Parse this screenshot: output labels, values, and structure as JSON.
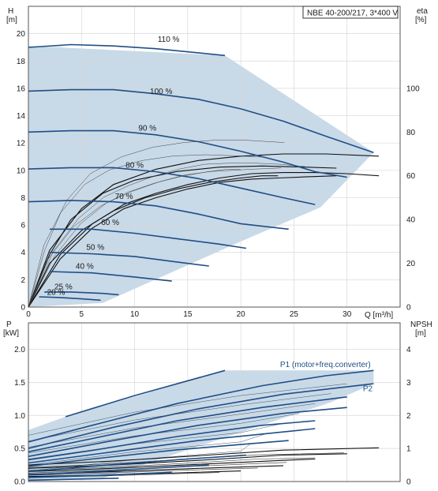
{
  "title": "NBE 40-200/217, 3*400 V",
  "chart_data": [
    {
      "type": "line",
      "name": "head",
      "xlabel": "Q [m³/h]",
      "ylabel_left": [
        "H",
        "[m]"
      ],
      "ylabel_right": [
        "eta",
        "[%]"
      ],
      "xlim": [
        0,
        35
      ],
      "ylim": [
        0,
        22
      ],
      "eta_lim": [
        0,
        137.5
      ],
      "xticks": [
        0,
        5,
        10,
        15,
        20,
        25,
        30
      ],
      "yticks": [
        0,
        2,
        4,
        6,
        8,
        10,
        12,
        14,
        16,
        18,
        20
      ],
      "eta_ticks": [
        0,
        20,
        40,
        60,
        80,
        100
      ],
      "grid": true,
      "operating_envelope": [
        [
          0,
          19.1
        ],
        [
          18.5,
          18.4
        ],
        [
          32.5,
          11.3
        ],
        [
          27.5,
          7.3
        ],
        [
          20,
          4.8
        ],
        [
          7,
          0.3
        ],
        [
          0,
          0
        ]
      ],
      "series": [
        {
          "name": "110 %",
          "label_at": [
            13.2,
            19.4
          ],
          "points": [
            [
              0,
              19.0
            ],
            [
              4,
              19.2
            ],
            [
              8,
              19.1
            ],
            [
              12,
              18.9
            ],
            [
              16,
              18.6
            ],
            [
              18.5,
              18.4
            ]
          ]
        },
        {
          "name": "100 %",
          "label_at": [
            12.5,
            15.6
          ],
          "points": [
            [
              0,
              15.8
            ],
            [
              4,
              15.9
            ],
            [
              8,
              15.9
            ],
            [
              12,
              15.6
            ],
            [
              16,
              15.2
            ],
            [
              20,
              14.5
            ],
            [
              24,
              13.6
            ],
            [
              28,
              12.5
            ],
            [
              32.5,
              11.3
            ]
          ]
        },
        {
          "name": "90 %",
          "label_at": [
            11.2,
            12.9
          ],
          "points": [
            [
              0,
              12.8
            ],
            [
              4,
              12.9
            ],
            [
              8,
              12.9
            ],
            [
              12,
              12.6
            ],
            [
              16,
              12.1
            ],
            [
              20,
              11.4
            ],
            [
              24,
              10.6
            ],
            [
              27,
              9.9
            ],
            [
              30,
              9.5
            ]
          ]
        },
        {
          "name": "80 %",
          "label_at": [
            10.0,
            10.2
          ],
          "points": [
            [
              0,
              10.1
            ],
            [
              4,
              10.2
            ],
            [
              8,
              10.2
            ],
            [
              12,
              9.9
            ],
            [
              16,
              9.4
            ],
            [
              20,
              8.7
            ],
            [
              24,
              8.0
            ],
            [
              27,
              7.5
            ]
          ]
        },
        {
          "name": "70 %",
          "label_at": [
            9.0,
            7.9
          ],
          "points": [
            [
              0,
              7.7
            ],
            [
              4,
              7.8
            ],
            [
              8,
              7.7
            ],
            [
              12,
              7.4
            ],
            [
              16,
              6.8
            ],
            [
              20,
              6.1
            ],
            [
              24.5,
              5.7
            ]
          ]
        },
        {
          "name": "60 %",
          "label_at": [
            7.7,
            6.0
          ],
          "points": [
            [
              2,
              5.7
            ],
            [
              6,
              5.7
            ],
            [
              10,
              5.4
            ],
            [
              14,
              5.0
            ],
            [
              18,
              4.6
            ],
            [
              20.5,
              4.3
            ]
          ]
        },
        {
          "name": "50 %",
          "label_at": [
            6.3,
            4.2
          ],
          "points": [
            [
              2,
              4.0
            ],
            [
              6,
              3.9
            ],
            [
              10,
              3.7
            ],
            [
              14,
              3.3
            ],
            [
              17,
              3.0
            ]
          ]
        },
        {
          "name": "40 %",
          "label_at": [
            5.3,
            2.8
          ],
          "points": [
            [
              2,
              2.6
            ],
            [
              6,
              2.5
            ],
            [
              10,
              2.2
            ],
            [
              13.5,
              1.9
            ]
          ]
        },
        {
          "name": "25 %",
          "label_at": [
            3.3,
            1.3
          ],
          "points": [
            [
              1.5,
              1.1
            ],
            [
              4,
              1.1
            ],
            [
              7,
              1.0
            ],
            [
              8.5,
              0.9
            ]
          ]
        },
        {
          "name": "20 %",
          "label_at": [
            2.6,
            0.9
          ],
          "points": [
            [
              1,
              0.75
            ],
            [
              3,
              0.7
            ],
            [
              5,
              0.6
            ],
            [
              6.8,
              0.5
            ]
          ]
        }
      ],
      "efficiency_curves": [
        [
          [
            0,
            0
          ],
          [
            2,
            20
          ],
          [
            5,
            35
          ],
          [
            8,
            44
          ],
          [
            11,
            50
          ],
          [
            14,
            54
          ],
          [
            17,
            57
          ],
          [
            20,
            59
          ],
          [
            22,
            60
          ],
          [
            23.5,
            60
          ]
        ],
        [
          [
            0,
            0
          ],
          [
            3,
            22
          ],
          [
            6,
            36
          ],
          [
            9,
            45
          ],
          [
            12,
            50
          ],
          [
            15,
            54
          ],
          [
            18,
            57
          ],
          [
            21,
            58.5
          ],
          [
            23.5,
            59
          ],
          [
            26,
            59.5
          ],
          [
            29,
            60
          ]
        ],
        [
          [
            0,
            0
          ],
          [
            3,
            24
          ],
          [
            6,
            38
          ],
          [
            9,
            47
          ],
          [
            12,
            52
          ],
          [
            15,
            56
          ],
          [
            18,
            59
          ],
          [
            21,
            61
          ],
          [
            24,
            61.5
          ],
          [
            27,
            61.5
          ],
          [
            30,
            61
          ],
          [
            33,
            60
          ]
        ],
        [
          [
            0,
            0
          ],
          [
            2,
            24
          ],
          [
            4,
            40
          ],
          [
            7,
            52
          ],
          [
            10,
            58
          ],
          [
            14,
            62
          ],
          [
            18,
            64
          ],
          [
            22,
            64.5
          ],
          [
            26,
            64
          ],
          [
            29,
            63.5
          ]
        ],
        [
          [
            0,
            0
          ],
          [
            2,
            26
          ],
          [
            5,
            45
          ],
          [
            8,
            56
          ],
          [
            12,
            63
          ],
          [
            16,
            67
          ],
          [
            20,
            69
          ],
          [
            24,
            70
          ],
          [
            28,
            70
          ],
          [
            33,
            69
          ]
        ]
      ]
    },
    {
      "type": "line",
      "name": "power",
      "xlim": [
        0,
        35
      ],
      "ylim": [
        0,
        2.4
      ],
      "npsh_lim": [
        0,
        4.8
      ],
      "ylabel_left": [
        "P",
        "[kW]"
      ],
      "ylabel_right": [
        "NPSH",
        "[m]"
      ],
      "yticks": [
        0.0,
        0.5,
        1.0,
        1.5,
        2.0
      ],
      "npsh_ticks": [
        0,
        1,
        2,
        3,
        4
      ],
      "grid": true,
      "operating_envelope": [
        [
          0,
          0.78
        ],
        [
          3.5,
          0.98
        ],
        [
          18.5,
          1.68
        ],
        [
          32.5,
          1.68
        ],
        [
          32.5,
          1.48
        ],
        [
          28.5,
          1.2
        ],
        [
          7,
          0.05
        ],
        [
          0,
          0
        ]
      ],
      "annotations": [
        {
          "text": "P1 (motor+freq.converter)",
          "at": [
            23.7,
            1.73
          ]
        },
        {
          "text": "P2",
          "at": [
            31.5,
            1.37
          ]
        }
      ],
      "series": [
        {
          "name": "P1 110 %",
          "points": [
            [
              3.5,
              0.98
            ],
            [
              10,
              1.3
            ],
            [
              18.5,
              1.68
            ]
          ]
        },
        {
          "name": "P1 100 %",
          "points": [
            [
              0,
              0.6
            ],
            [
              6,
              0.85
            ],
            [
              14,
              1.18
            ],
            [
              22,
              1.45
            ],
            [
              28,
              1.6
            ],
            [
              32.5,
              1.68
            ]
          ]
        },
        {
          "name": "P1 90 %",
          "points": [
            [
              0,
              0.45
            ],
            [
              6,
              0.65
            ],
            [
              14,
              0.92
            ],
            [
              22,
              1.12
            ],
            [
              30,
              1.28
            ]
          ]
        },
        {
          "name": "P1 80 %",
          "points": [
            [
              0,
              0.33
            ],
            [
              6,
              0.47
            ],
            [
              14,
              0.68
            ],
            [
              22,
              0.85
            ],
            [
              27,
              0.92
            ]
          ]
        },
        {
          "name": "P1 70 %",
          "points": [
            [
              0,
              0.23
            ],
            [
              6,
              0.34
            ],
            [
              14,
              0.48
            ],
            [
              24.5,
              0.62
            ]
          ]
        },
        {
          "name": "P1 60 %",
          "points": [
            [
              0,
              0.15
            ],
            [
              6,
              0.23
            ],
            [
              14,
              0.33
            ],
            [
              20.5,
              0.4
            ]
          ]
        },
        {
          "name": "P1 50 %",
          "points": [
            [
              0,
              0.1
            ],
            [
              6,
              0.15
            ],
            [
              17,
              0.25
            ]
          ]
        },
        {
          "name": "P1 40 %",
          "points": [
            [
              0,
              0.06
            ],
            [
              6,
              0.09
            ],
            [
              13.5,
              0.14
            ]
          ]
        },
        {
          "name": "P1 25 %",
          "points": [
            [
              0,
              0.02
            ],
            [
              8.5,
              0.05
            ]
          ]
        },
        {
          "name": "P2 100 %",
          "points": [
            [
              0,
              0.5
            ],
            [
              8,
              0.82
            ],
            [
              16,
              1.1
            ],
            [
              24,
              1.32
            ],
            [
              32.5,
              1.48
            ]
          ]
        },
        {
          "name": "P2 90 %",
          "points": [
            [
              0,
              0.38
            ],
            [
              8,
              0.62
            ],
            [
              16,
              0.85
            ],
            [
              24,
              1.03
            ],
            [
              30,
              1.12
            ]
          ]
        },
        {
          "name": "P2 80 %",
          "points": [
            [
              0,
              0.28
            ],
            [
              8,
              0.45
            ],
            [
              16,
              0.62
            ],
            [
              27,
              0.8
            ]
          ]
        }
      ],
      "npsh_curves": [
        [
          [
            0,
            0.5
          ],
          [
            8,
            0.62
          ],
          [
            16,
            0.78
          ],
          [
            24,
            0.95
          ],
          [
            33,
            1.02
          ]
        ],
        [
          [
            0,
            0.4
          ],
          [
            8,
            0.5
          ],
          [
            16,
            0.64
          ],
          [
            24,
            0.8
          ],
          [
            30,
            0.84
          ]
        ],
        [
          [
            0,
            0.3
          ],
          [
            8,
            0.4
          ],
          [
            16,
            0.52
          ],
          [
            24,
            0.64
          ],
          [
            27,
            0.68
          ]
        ],
        [
          [
            0,
            0.22
          ],
          [
            8,
            0.3
          ],
          [
            16,
            0.4
          ],
          [
            24,
            0.48
          ]
        ],
        [
          [
            0,
            0.15
          ],
          [
            8,
            0.2
          ],
          [
            16,
            0.28
          ],
          [
            20,
            0.32
          ]
        ]
      ]
    }
  ]
}
